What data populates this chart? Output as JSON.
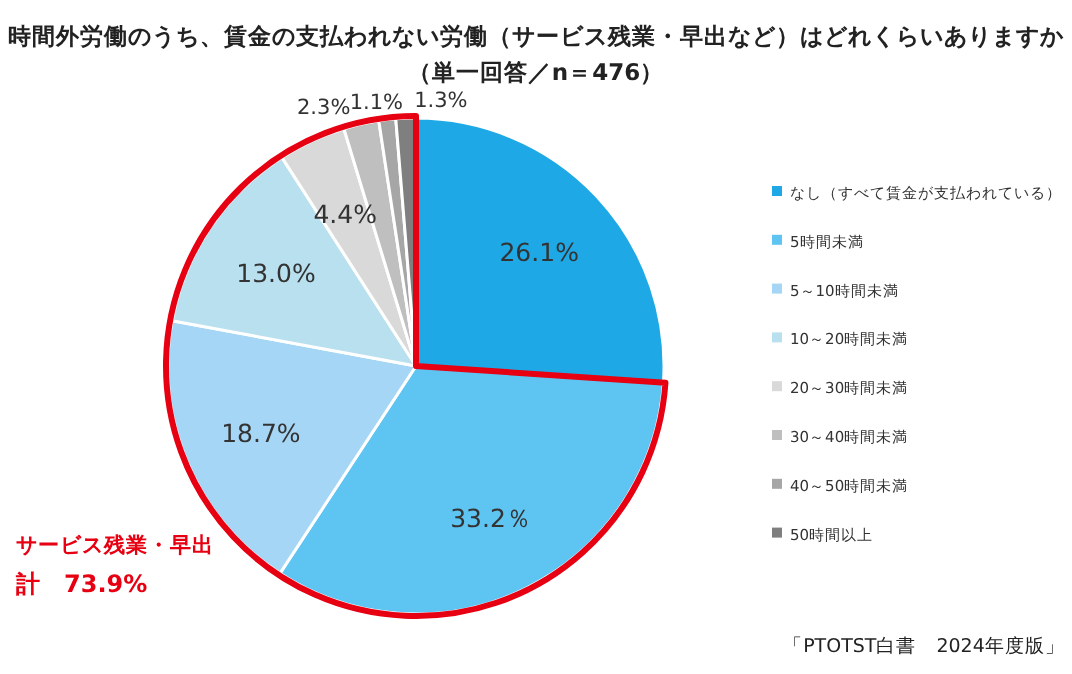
{
  "chart_data": {
    "type": "pie",
    "title": "時間外労働のうち、賃金の支払われない労働（サービス残業・早出など）はどれくらいありますか",
    "subtitle": "（単一回答／n＝476）",
    "categories": [
      "なし（すべて賃金が支払われている）",
      "5時間未満",
      "5～10時間未満",
      "10～20時間未満",
      "20～30時間未満",
      "30～40時間未満",
      "40～50時間未満",
      "50時間以上"
    ],
    "values": [
      26.1,
      33.2,
      18.7,
      13.0,
      4.4,
      2.3,
      1.1,
      1.3
    ],
    "value_labels": [
      "26.1%",
      "33.2％",
      "18.7%",
      "13.0%",
      "4.4%",
      "2.3%",
      "1.1%",
      "1.3%"
    ],
    "colors": [
      "#1ea9e6",
      "#5ec4f2",
      "#a6d6f5",
      "#b9e0ef",
      "#d9d9d9",
      "#bfbfbf",
      "#a6a6a6",
      "#7f7f7f"
    ],
    "legend": "right",
    "annotations": [
      "サービス残業・早出",
      "計　73.9%",
      "「PTOTST白書　2024年度版」"
    ]
  }
}
